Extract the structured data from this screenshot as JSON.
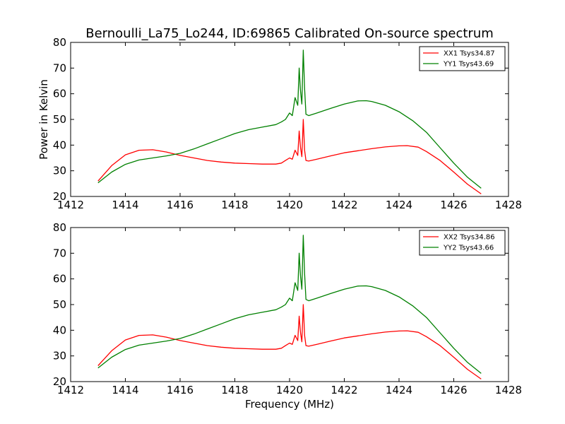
{
  "chart_data": {
    "type": "line",
    "title": "Bernoulli_La75_Lo244, ID:69865 Calibrated On-source spectrum",
    "xlabel": "Frequency (MHz)",
    "ylabel": "Power in Kelvin",
    "xlim": [
      1412,
      1428
    ],
    "ylim": [
      20,
      80
    ],
    "xticks": [
      1412,
      1414,
      1416,
      1418,
      1420,
      1422,
      1424,
      1426,
      1428
    ],
    "yticks": [
      20,
      30,
      40,
      50,
      60,
      70,
      80
    ],
    "grid": false,
    "legend_position": "top-right",
    "colors": {
      "red": "#ff0000",
      "green": "#008000"
    },
    "panels": [
      {
        "series": [
          {
            "name": "XX1 Tsys34.87",
            "color": "#ff0000",
            "x": [
              1413.0,
              1413.5,
              1414.0,
              1414.5,
              1415.0,
              1415.5,
              1416.0,
              1416.5,
              1417.0,
              1417.5,
              1418.0,
              1418.5,
              1419.0,
              1419.5,
              1419.7,
              1419.85,
              1420.0,
              1420.1,
              1420.2,
              1420.3,
              1420.35,
              1420.4,
              1420.45,
              1420.5,
              1420.55,
              1420.6,
              1420.7,
              1421.0,
              1421.5,
              1422.0,
              1422.5,
              1423.0,
              1423.5,
              1424.0,
              1424.3,
              1424.7,
              1425.0,
              1425.5,
              1426.0,
              1426.5,
              1427.0
            ],
            "y": [
              26.0,
              32.0,
              36.2,
              38.0,
              38.2,
              37.3,
              36.0,
              35.0,
              34.0,
              33.4,
              33.0,
              32.8,
              32.6,
              32.6,
              33.0,
              34.0,
              35.0,
              34.5,
              38.0,
              36.0,
              45.5,
              39.0,
              35.5,
              50.0,
              38.0,
              34.0,
              33.8,
              34.5,
              35.8,
              37.0,
              37.8,
              38.6,
              39.3,
              39.7,
              39.8,
              39.2,
              37.5,
              34.0,
              29.5,
              24.8,
              21.0
            ]
          },
          {
            "name": "YY1 Tsys43.69",
            "color": "#008000",
            "x": [
              1413.0,
              1413.5,
              1414.0,
              1414.5,
              1415.0,
              1415.5,
              1416.0,
              1416.5,
              1417.0,
              1417.5,
              1418.0,
              1418.5,
              1419.0,
              1419.5,
              1419.7,
              1419.85,
              1420.0,
              1420.1,
              1420.2,
              1420.3,
              1420.35,
              1420.4,
              1420.45,
              1420.5,
              1420.55,
              1420.6,
              1420.7,
              1421.0,
              1421.5,
              1422.0,
              1422.5,
              1422.8,
              1423.0,
              1423.5,
              1424.0,
              1424.5,
              1425.0,
              1425.5,
              1426.0,
              1426.5,
              1427.0
            ],
            "y": [
              25.3,
              29.5,
              32.5,
              34.2,
              35.0,
              35.8,
              36.8,
              38.5,
              40.5,
              42.5,
              44.5,
              46.0,
              47.0,
              48.0,
              49.0,
              50.0,
              52.5,
              51.5,
              58.5,
              55.5,
              70.0,
              61.0,
              56.0,
              77.0,
              62.0,
              52.0,
              51.5,
              52.5,
              54.3,
              56.0,
              57.2,
              57.3,
              57.0,
              55.5,
              53.0,
              49.5,
              45.0,
              39.0,
              33.0,
              27.5,
              23.2
            ]
          }
        ]
      },
      {
        "series": [
          {
            "name": "XX2 Tsys34.86",
            "color": "#ff0000",
            "x": [
              1413.0,
              1413.5,
              1414.0,
              1414.5,
              1415.0,
              1415.5,
              1416.0,
              1416.5,
              1417.0,
              1417.5,
              1418.0,
              1418.5,
              1419.0,
              1419.5,
              1419.7,
              1419.85,
              1420.0,
              1420.1,
              1420.2,
              1420.3,
              1420.35,
              1420.4,
              1420.45,
              1420.5,
              1420.55,
              1420.6,
              1420.7,
              1421.0,
              1421.5,
              1422.0,
              1422.5,
              1423.0,
              1423.5,
              1424.0,
              1424.3,
              1424.7,
              1425.0,
              1425.5,
              1426.0,
              1426.5,
              1427.0
            ],
            "y": [
              26.2,
              32.0,
              36.2,
              38.0,
              38.2,
              37.3,
              36.0,
              35.0,
              34.0,
              33.4,
              33.0,
              32.8,
              32.6,
              32.6,
              33.0,
              34.0,
              35.0,
              34.5,
              38.0,
              36.0,
              45.5,
              39.0,
              35.5,
              50.0,
              38.0,
              34.0,
              33.8,
              34.5,
              35.8,
              37.0,
              37.8,
              38.6,
              39.3,
              39.7,
              39.8,
              39.2,
              37.5,
              34.0,
              29.5,
              24.8,
              21.0
            ]
          },
          {
            "name": "YY2 Tsys43.66",
            "color": "#008000",
            "x": [
              1413.0,
              1413.5,
              1414.0,
              1414.5,
              1415.0,
              1415.5,
              1416.0,
              1416.5,
              1417.0,
              1417.5,
              1418.0,
              1418.5,
              1419.0,
              1419.5,
              1419.7,
              1419.85,
              1420.0,
              1420.1,
              1420.2,
              1420.3,
              1420.35,
              1420.4,
              1420.45,
              1420.5,
              1420.55,
              1420.6,
              1420.7,
              1421.0,
              1421.5,
              1422.0,
              1422.5,
              1422.8,
              1423.0,
              1423.5,
              1424.0,
              1424.5,
              1425.0,
              1425.5,
              1426.0,
              1426.5,
              1427.0
            ],
            "y": [
              25.3,
              29.5,
              32.5,
              34.2,
              35.0,
              35.8,
              36.8,
              38.5,
              40.5,
              42.5,
              44.5,
              46.0,
              47.0,
              48.0,
              49.0,
              50.0,
              52.5,
              51.5,
              58.5,
              55.5,
              70.0,
              61.0,
              56.0,
              77.0,
              62.0,
              52.0,
              51.5,
              52.5,
              54.3,
              56.0,
              57.2,
              57.3,
              57.0,
              55.5,
              53.0,
              49.5,
              45.0,
              39.0,
              33.0,
              27.5,
              23.2
            ]
          }
        ]
      }
    ]
  }
}
